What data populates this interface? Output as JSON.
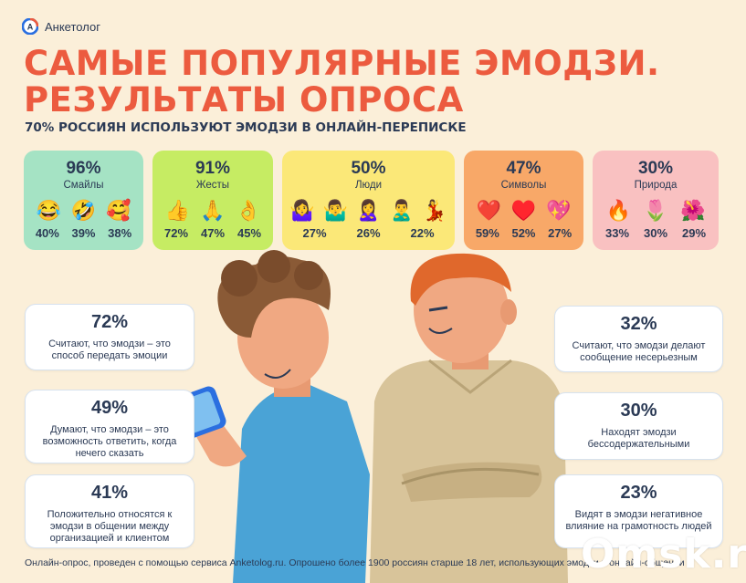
{
  "brand": {
    "name": "Анкетолог",
    "logo_letter": "А"
  },
  "title_line1": "САМЫЕ ПОПУЛЯРНЫЕ ЭМОДЗИ.",
  "title_line2": "РЕЗУЛЬТАТЫ ОПРОСА",
  "subtitle": "70% РОССИЯН ИСПОЛЬЗУЮТ ЭМОДЗИ В ОНЛАЙН-ПЕРЕПИСКЕ",
  "categories": [
    {
      "percent": "96%",
      "label": "Смайлы",
      "color": "#a5e3c4",
      "emojis": [
        "😂",
        "🤣",
        "🥰"
      ],
      "values": [
        "40%",
        "39%",
        "38%"
      ]
    },
    {
      "percent": "91%",
      "label": "Жесты",
      "color": "#c6ec63",
      "emojis": [
        "👍",
        "🙏",
        "👌"
      ],
      "values": [
        "72%",
        "47%",
        "45%"
      ]
    },
    {
      "percent": "50%",
      "label": "Люди",
      "color": "#fbe878",
      "emojis": [
        "🤷‍♀️",
        "🤷‍♂️",
        "🙎‍♀️",
        "🙎‍♂️",
        "💃"
      ],
      "values": [
        "27%",
        "26%",
        "22%"
      ]
    },
    {
      "percent": "47%",
      "label": "Символы",
      "color": "#f8a868",
      "emojis": [
        "❤️",
        "♥️",
        "💖"
      ],
      "values": [
        "59%",
        "52%",
        "27%"
      ]
    },
    {
      "percent": "30%",
      "label": "Природа",
      "color": "#f9c1c1",
      "emojis": [
        "🔥",
        "🌷",
        "🌺"
      ],
      "values": [
        "33%",
        "30%",
        "29%"
      ]
    }
  ],
  "left_facts": [
    {
      "percent": "72%",
      "text": "Считают, что эмодзи – это способ передать эмоции"
    },
    {
      "percent": "49%",
      "text": "Думают, что эмодзи – это возможность ответить, когда нечего сказать"
    },
    {
      "percent": "41%",
      "text": "Положительно относятся к эмодзи в общении между организацией и клиентом"
    }
  ],
  "right_facts": [
    {
      "percent": "32%",
      "text": "Считают, что эмодзи делают сообщение несерьезным"
    },
    {
      "percent": "30%",
      "text": "Находят эмодзи бессодержательными"
    },
    {
      "percent": "23%",
      "text": "Видят в эмодзи негативное влияние на грамотность людей"
    }
  ],
  "footnote": "Онлайн-опрос, проведен с помощью сервиса Anketolog.ru. Опрошено более 1900 россиян старше 18 лет, использующих эмодзи в онлайн-общении",
  "watermark": "Omsk.ru"
}
